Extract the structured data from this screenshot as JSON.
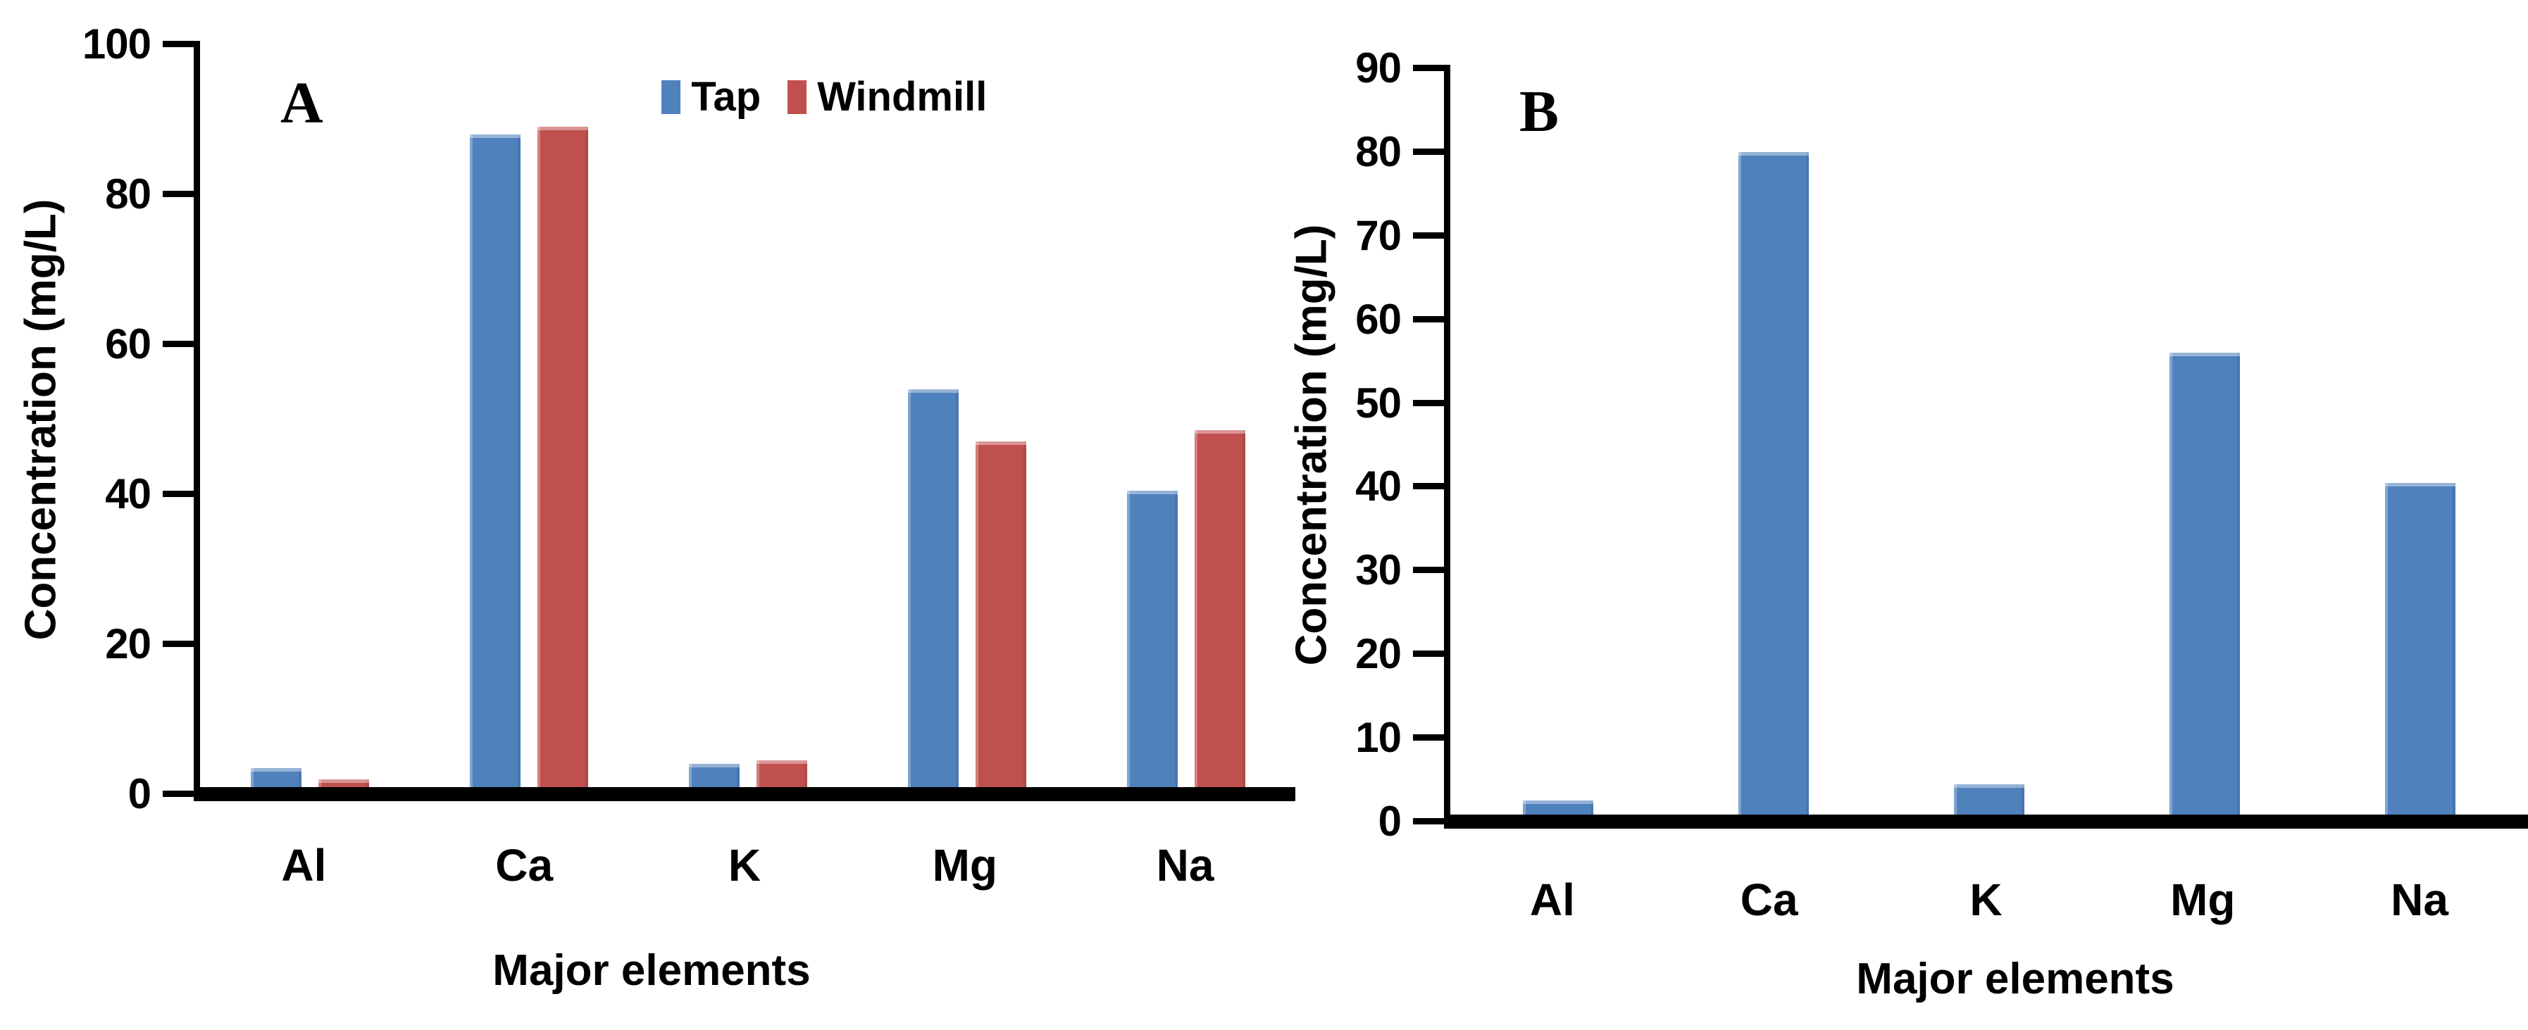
{
  "canvas": {
    "background": "#ffffff",
    "text_color": "#000000",
    "axis_color": "#000000"
  },
  "chart_data": [
    {
      "type": "bar",
      "panel_label": "A",
      "title": "A",
      "categories": [
        "Al",
        "Ca",
        "K",
        "Mg",
        "Na"
      ],
      "series": [
        {
          "name": "Tap",
          "color": "#4F81BD",
          "values": [
            3.5,
            88,
            4,
            54,
            40.5
          ]
        },
        {
          "name": "Windmill",
          "color": "#C0504D",
          "values": [
            2,
            89,
            4.5,
            47,
            48.5
          ]
        }
      ],
      "xlabel": "Major elements",
      "ylabel": "Concentration (mg/L)",
      "ylim": [
        0,
        100
      ],
      "yticks": [
        0,
        20,
        40,
        60,
        80,
        100
      ],
      "grid": false,
      "show_legend": true,
      "legend_position": "top-center"
    },
    {
      "type": "bar",
      "panel_label": "B",
      "title": "B",
      "categories": [
        "Al",
        "Ca",
        "K",
        "Mg",
        "Na"
      ],
      "series": [
        {
          "name": "",
          "color": "#4F81BD",
          "values": [
            2.5,
            80,
            4.5,
            56,
            40.5
          ]
        }
      ],
      "xlabel": "Major elements",
      "ylabel": "Concentration (mg/L)",
      "ylim": [
        0,
        90
      ],
      "yticks": [
        0,
        10,
        20,
        30,
        40,
        50,
        60,
        70,
        80,
        90
      ],
      "grid": false,
      "show_legend": false,
      "legend_position": "none"
    }
  ]
}
